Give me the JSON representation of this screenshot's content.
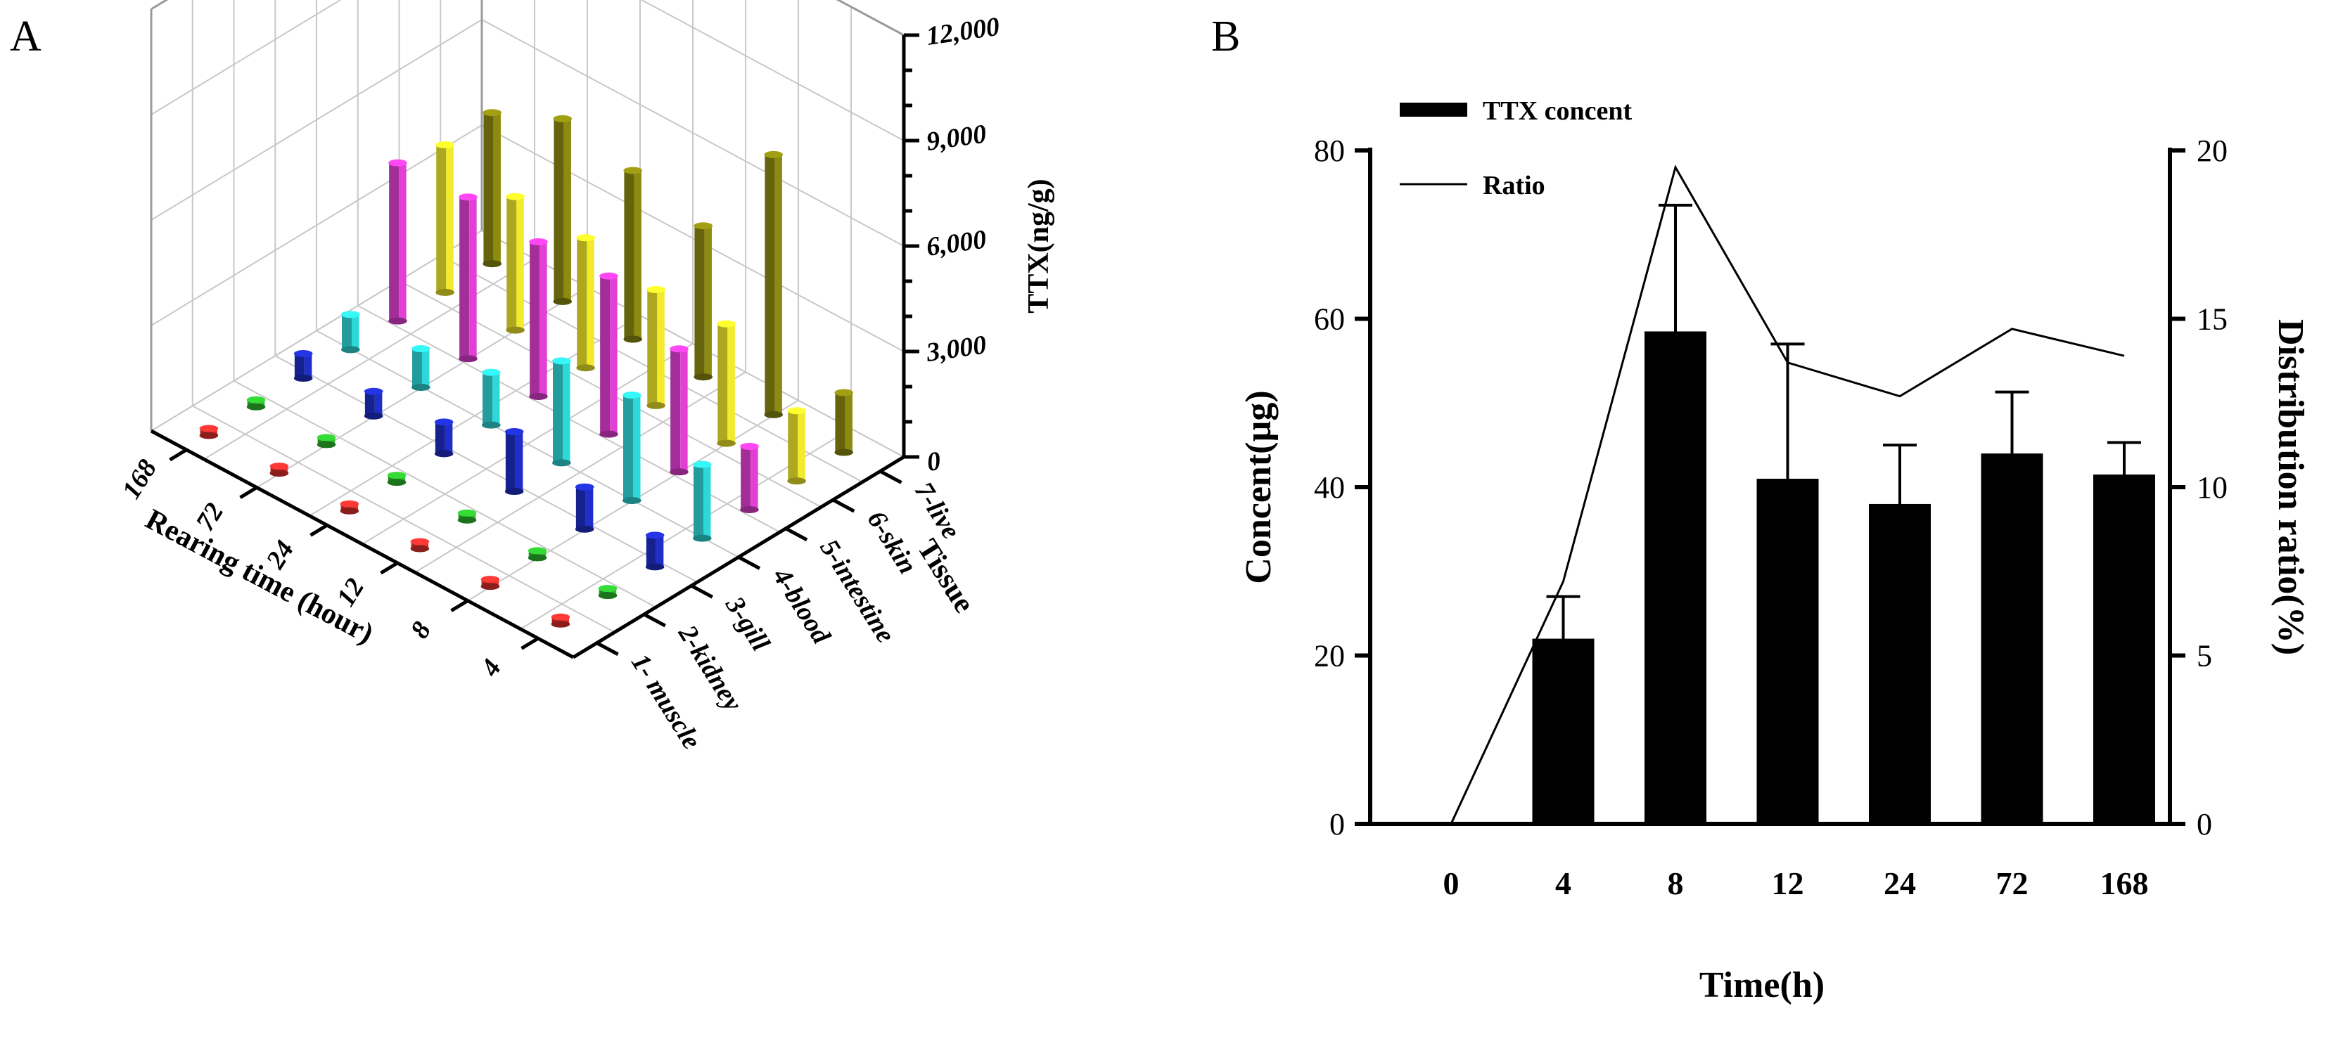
{
  "panels": {
    "a_label": "A",
    "b_label": "B"
  },
  "chart_data": [
    {
      "type": "bar3d",
      "panel": "A",
      "title": "",
      "xlabel": "Rearing time (hour)",
      "ylabel": "Tissue",
      "zlabel": "TTX(ng/g)",
      "x_categories": [
        "4",
        "8",
        "12",
        "24",
        "72",
        "168"
      ],
      "y_categories": [
        "1- muscle",
        "2-kidney",
        "3-gill",
        "4-blood",
        "5-intestine",
        "6-skin",
        "7-live"
      ],
      "z_ticks": [
        "0",
        "3,000",
        "6,000",
        "9,000",
        "12,000"
      ],
      "zlim": [
        0,
        12000
      ],
      "colors": [
        "#e8322e",
        "#2fbf2f",
        "#1f2ec8",
        "#2fd8d8",
        "#e23fd4",
        "#f2ea2a",
        "#8c8a10"
      ],
      "values": [
        [
          80,
          80,
          80,
          50,
          80,
          80
        ],
        [
          90,
          110,
          90,
          90,
          110,
          100
        ],
        [
          900,
          1200,
          1700,
          900,
          700,
          700
        ],
        [
          2100,
          3000,
          2900,
          1500,
          1100,
          1000
        ],
        [
          1800,
          3500,
          4500,
          4400,
          4600,
          4500
        ],
        [
          2000,
          3400,
          3300,
          3700,
          3800,
          4200
        ],
        [
          1700,
          7400,
          4300,
          4800,
          5200,
          4300
        ]
      ]
    },
    {
      "type": "bar+line",
      "panel": "B",
      "title": "",
      "xlabel": "Time(h)",
      "ylabel": "Concent(µg)",
      "y2label": "Distribution ratio(%)",
      "categories": [
        "0",
        "4",
        "8",
        "12",
        "24",
        "72",
        "168"
      ],
      "ylim": [
        0,
        80
      ],
      "y2lim": [
        0,
        20
      ],
      "y_ticks": [
        "0",
        "20",
        "40",
        "60",
        "80"
      ],
      "y2_ticks": [
        "0",
        "5",
        "10",
        "15",
        "20"
      ],
      "series": [
        {
          "name": "TTX concent",
          "kind": "bar",
          "axis": "left",
          "values": [
            0,
            22,
            58.5,
            41,
            38,
            44,
            41.5
          ],
          "errors": [
            0,
            5,
            15,
            16,
            7,
            7.3,
            3.8
          ]
        },
        {
          "name": "Ratio",
          "kind": "line",
          "axis": "right",
          "values": [
            0,
            7.2,
            19.5,
            13.7,
            12.7,
            14.7,
            13.9
          ]
        }
      ]
    }
  ]
}
